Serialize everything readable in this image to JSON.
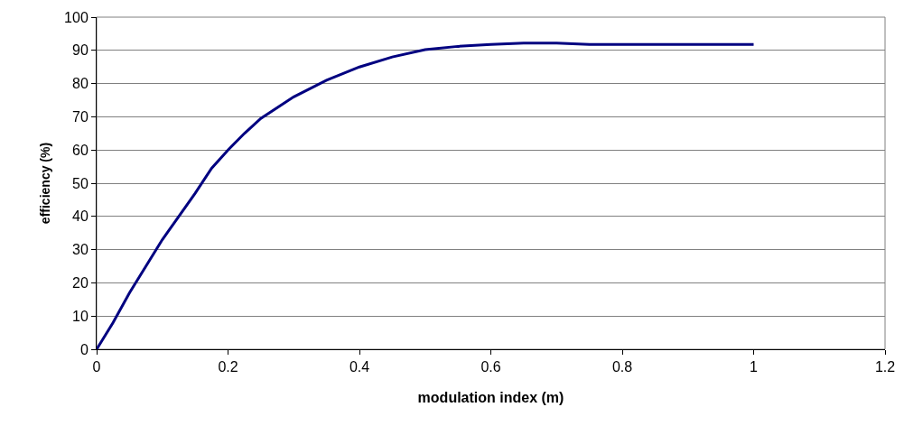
{
  "chart_data": {
    "type": "line",
    "xlabel": "modulation index (m)",
    "ylabel": "efficiency (%)",
    "x": [
      0,
      0.025,
      0.05,
      0.075,
      0.1,
      0.125,
      0.15,
      0.175,
      0.2,
      0.225,
      0.25,
      0.3,
      0.35,
      0.4,
      0.45,
      0.5,
      0.55,
      0.6,
      0.65,
      0.7,
      0.75,
      0.8,
      0.9,
      1
    ],
    "series": [
      {
        "color": "#000080",
        "values": [
          0,
          8,
          17,
          25,
          33,
          40,
          47,
          54.5,
          60,
          65,
          69.5,
          76,
          81,
          85,
          88,
          90.2,
          91.2,
          91.8,
          92.2,
          92.2,
          91.8,
          91.8,
          91.8,
          91.8
        ]
      }
    ],
    "xlim": [
      0,
      1.2
    ],
    "xticks": [
      0,
      0.2,
      0.4,
      0.6,
      0.8,
      1,
      1.2
    ],
    "ylim": [
      0,
      100
    ],
    "yticks": [
      0,
      10,
      20,
      30,
      40,
      50,
      60,
      70,
      80,
      90,
      100
    ],
    "grid": "y",
    "marker": "none",
    "line_style": "solid"
  }
}
